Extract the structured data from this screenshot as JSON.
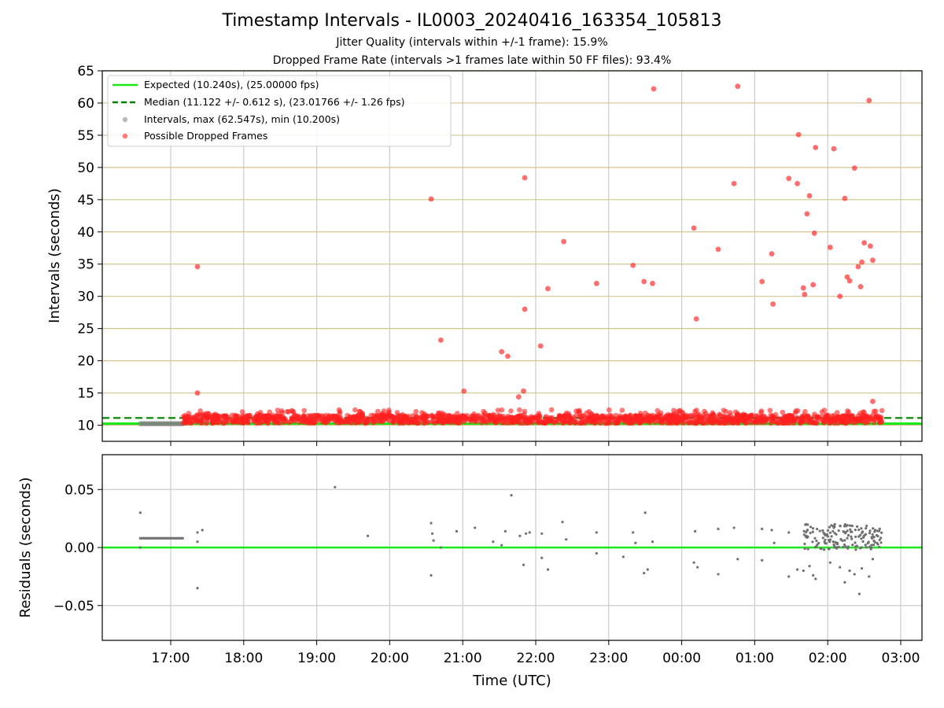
{
  "title": "Timestamp Intervals - IL0003_20240416_163354_105813",
  "subtitle_1": "Jitter Quality (intervals within +/-1 frame): 15.9%",
  "subtitle_2": "Dropped Frame Rate (intervals >1 frames late within 50 FF files): 93.4%",
  "colors": {
    "expected": "#1de81d",
    "median": "#008000",
    "intervals": "#808080",
    "dropped": "#ff2020",
    "grid_h_top": "#d4c490",
    "grid": "#cccccc"
  },
  "chart_data": [
    {
      "type": "scatter",
      "title": "",
      "xlabel": "",
      "ylabel": "Intervals (seconds)",
      "ylim": [
        7.5,
        65
      ],
      "yticks": [
        10,
        15,
        20,
        25,
        30,
        35,
        40,
        45,
        50,
        55,
        60,
        65
      ],
      "grid": true,
      "legend_position": "top-left",
      "legend": [
        "Expected (10.240s), (25.00000 fps)",
        "Median (11.122 +/- 0.612 s), (23.01766 +/- 1.26 fps)",
        "Intervals, max (62.547s), min (10.200s)",
        "Possible Dropped Frames"
      ],
      "expected_line": 10.24,
      "median_line": 11.122,
      "series": [
        {
          "name": "Intervals, max (62.547s), min (10.200s)",
          "x_range": [
            "16:35",
            "17:10"
          ],
          "y": 10.24
        },
        {
          "name": "Possible Dropped Frames",
          "band": {
            "x_range": [
              "17:10",
              "02:45"
            ],
            "y_min": 10.3,
            "y_max": 12.4
          },
          "points": [
            [
              "17:22",
              34.6
            ],
            [
              "17:22",
              15.0
            ],
            [
              "20:34",
              45.1
            ],
            [
              "20:42",
              23.2
            ],
            [
              "21:01",
              15.3
            ],
            [
              "21:32",
              21.4
            ],
            [
              "21:37",
              20.7
            ],
            [
              "21:46",
              14.4
            ],
            [
              "21:50",
              15.3
            ],
            [
              "21:51",
              48.4
            ],
            [
              "21:51",
              28.0
            ],
            [
              "22:04",
              22.3
            ],
            [
              "22:10",
              31.2
            ],
            [
              "22:23",
              38.5
            ],
            [
              "22:50",
              32.0
            ],
            [
              "23:20",
              34.8
            ],
            [
              "23:29",
              32.3
            ],
            [
              "23:36",
              32.0
            ],
            [
              "23:37",
              62.2
            ],
            [
              "00:10",
              40.6
            ],
            [
              "00:12",
              26.5
            ],
            [
              "00:30",
              37.3
            ],
            [
              "00:43",
              47.5
            ],
            [
              "00:46",
              62.6
            ],
            [
              "01:06",
              32.3
            ],
            [
              "01:14",
              36.6
            ],
            [
              "01:15",
              28.8
            ],
            [
              "01:28",
              48.3
            ],
            [
              "01:35",
              47.5
            ],
            [
              "01:36",
              55.1
            ],
            [
              "01:40",
              31.3
            ],
            [
              "01:41",
              30.3
            ],
            [
              "01:43",
              42.8
            ],
            [
              "01:45",
              45.6
            ],
            [
              "01:48",
              31.8
            ],
            [
              "01:49",
              39.8
            ],
            [
              "01:50",
              53.1
            ],
            [
              "02:02",
              37.6
            ],
            [
              "02:05",
              52.9
            ],
            [
              "02:10",
              30.0
            ],
            [
              "02:14",
              45.2
            ],
            [
              "02:16",
              33.0
            ],
            [
              "02:18",
              32.4
            ],
            [
              "02:22",
              49.9
            ],
            [
              "02:25",
              34.6
            ],
            [
              "02:27",
              31.5
            ],
            [
              "02:28",
              35.3
            ],
            [
              "02:30",
              38.3
            ],
            [
              "02:34",
              60.4
            ],
            [
              "02:35",
              37.8
            ],
            [
              "02:37",
              35.6
            ],
            [
              "02:37",
              13.7
            ]
          ]
        }
      ]
    },
    {
      "type": "scatter",
      "title": "",
      "xlabel": "Time (UTC)",
      "ylabel": "Residuals (seconds)",
      "ylim": [
        -0.08,
        0.08
      ],
      "yticks": [
        0.05,
        0.0,
        -0.05
      ],
      "ytick_labels": [
        "0.05",
        "0.00",
        "−0.05"
      ],
      "xticks": [
        "17:00",
        "18:00",
        "19:00",
        "20:00",
        "21:00",
        "22:00",
        "23:00",
        "00:00",
        "01:00",
        "02:00",
        "03:00"
      ],
      "grid": true,
      "zero_line": 0.0,
      "series": [
        {
          "name": "",
          "band": {
            "x_range": [
              "16:35",
              "17:10"
            ],
            "y": 0.008
          },
          "points": [
            [
              "16:35",
              0.03
            ],
            [
              "16:35",
              0.0
            ],
            [
              "17:22",
              0.005
            ],
            [
              "17:22",
              0.013
            ],
            [
              "17:22",
              -0.035
            ],
            [
              "17:26",
              0.015
            ],
            [
              "19:15",
              0.052
            ],
            [
              "19:42",
              0.01
            ],
            [
              "20:34",
              -0.024
            ],
            [
              "20:34",
              0.021
            ],
            [
              "20:35",
              0.012
            ],
            [
              "20:36",
              0.006
            ],
            [
              "20:42",
              0.0
            ],
            [
              "20:55",
              0.014
            ],
            [
              "21:10",
              0.017
            ],
            [
              "21:25",
              0.005
            ],
            [
              "21:32",
              0.002
            ],
            [
              "21:35",
              0.014
            ],
            [
              "21:40",
              0.045
            ],
            [
              "21:47",
              0.01
            ],
            [
              "21:50",
              -0.015
            ],
            [
              "21:52",
              0.012
            ],
            [
              "21:55",
              0.013
            ],
            [
              "22:05",
              -0.009
            ],
            [
              "22:05",
              0.012
            ],
            [
              "22:10",
              -0.019
            ],
            [
              "22:22",
              0.022
            ],
            [
              "22:25",
              0.007
            ],
            [
              "22:50",
              -0.005
            ],
            [
              "22:50",
              0.013
            ],
            [
              "23:12",
              -0.008
            ],
            [
              "23:20",
              0.013
            ],
            [
              "23:22",
              0.004
            ],
            [
              "23:29",
              -0.022
            ],
            [
              "23:30",
              0.03
            ],
            [
              "23:32",
              -0.019
            ],
            [
              "23:36",
              0.005
            ],
            [
              "00:10",
              -0.013
            ],
            [
              "00:11",
              0.014
            ],
            [
              "00:13",
              -0.017
            ],
            [
              "00:30",
              -0.023
            ],
            [
              "00:30",
              0.016
            ],
            [
              "00:43",
              0.017
            ],
            [
              "00:46",
              -0.01
            ],
            [
              "01:06",
              -0.011
            ],
            [
              "01:06",
              0.016
            ],
            [
              "01:14",
              0.015
            ],
            [
              "01:16",
              0.004
            ],
            [
              "01:28",
              -0.025
            ],
            [
              "01:28",
              0.013
            ],
            [
              "01:35",
              -0.019
            ],
            [
              "01:40",
              -0.02
            ],
            [
              "01:45",
              -0.016
            ],
            [
              "01:48",
              -0.024
            ],
            [
              "01:50",
              -0.027
            ],
            [
              "02:02",
              -0.013
            ],
            [
              "02:05",
              0.017
            ],
            [
              "02:10",
              -0.017
            ],
            [
              "02:14",
              -0.03
            ],
            [
              "02:18",
              -0.02
            ],
            [
              "02:22",
              -0.023
            ],
            [
              "02:26",
              -0.04
            ],
            [
              "02:28",
              -0.018
            ],
            [
              "02:34",
              -0.025
            ],
            [
              "02:37",
              -0.01
            ]
          ]
        }
      ]
    }
  ]
}
